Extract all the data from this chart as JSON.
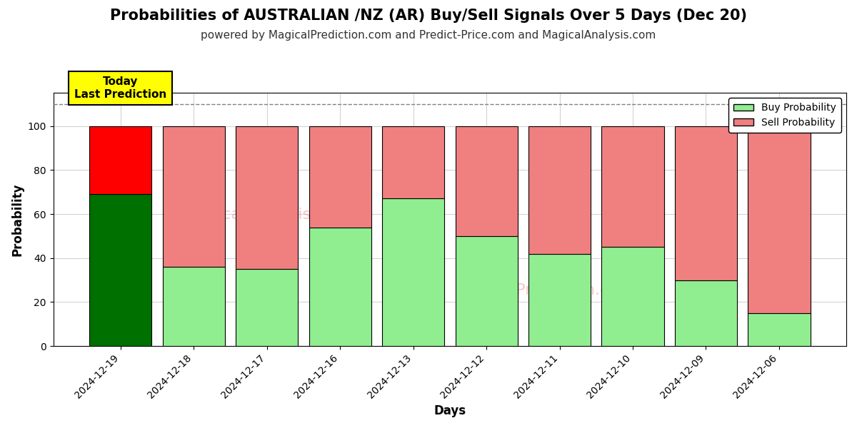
{
  "title": "Probabilities of AUSTRALIAN /NZ (AR) Buy/Sell Signals Over 5 Days (Dec 20)",
  "subtitle": "powered by MagicalPrediction.com and Predict-Price.com and MagicalAnalysis.com",
  "xlabel": "Days",
  "ylabel": "Probability",
  "categories": [
    "2024-12-19",
    "2024-12-18",
    "2024-12-17",
    "2024-12-16",
    "2024-12-13",
    "2024-12-12",
    "2024-12-11",
    "2024-12-10",
    "2024-12-09",
    "2024-12-06"
  ],
  "buy_values": [
    69,
    36,
    35,
    54,
    67,
    50,
    42,
    45,
    30,
    15
  ],
  "sell_values": [
    31,
    64,
    65,
    46,
    33,
    50,
    58,
    55,
    70,
    85
  ],
  "today_buy_color": "#007000",
  "today_sell_color": "#ff0000",
  "buy_color": "#90ee90",
  "sell_color": "#f08080",
  "bar_edge_color": "#000000",
  "ylim_min": 0,
  "ylim_max": 115,
  "dashed_line_y": 110,
  "yticks": [
    0,
    20,
    40,
    60,
    80,
    100
  ],
  "legend_buy_label": "Buy Probability",
  "legend_sell_label": "Sell Probability",
  "today_label": "Today\nLast Prediction",
  "title_fontsize": 15,
  "subtitle_fontsize": 11,
  "axis_label_fontsize": 12,
  "tick_fontsize": 10,
  "legend_fontsize": 10,
  "bar_width": 0.85
}
